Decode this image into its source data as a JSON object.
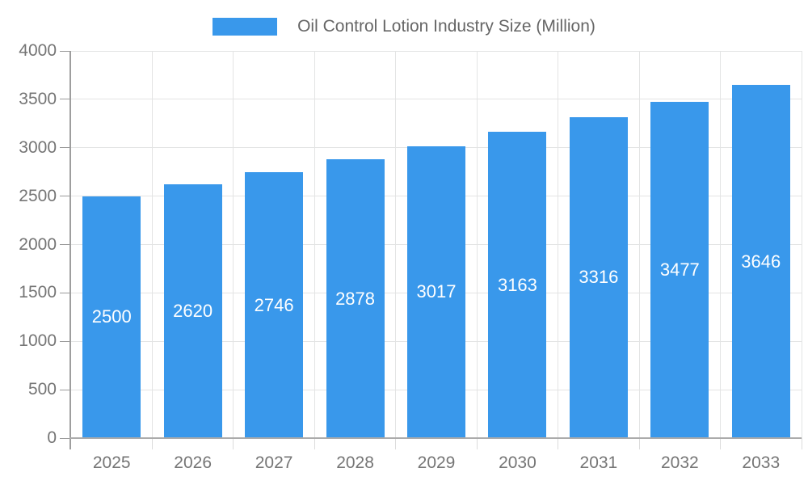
{
  "legend": {
    "label": "Oil Control Lotion Industry Size (Million)"
  },
  "colors": {
    "background": "#ffffff",
    "bar": "#3998EB",
    "grid": "#e3e4e4",
    "y_axis_line": "#9e9e9e",
    "x_axis_line": "#ababab",
    "y_tick": "#9a9a9a",
    "x_tick": "#dcdcdc",
    "axis_text": "#757575",
    "legend_text": "#666666",
    "bar_label_text": "#ffffff"
  },
  "chart_data": {
    "type": "bar",
    "title": "Oil Control Lotion Industry Size (Million)",
    "categories": [
      "2025",
      "2026",
      "2027",
      "2028",
      "2029",
      "2030",
      "2031",
      "2032",
      "2033"
    ],
    "values": [
      2500,
      2620,
      2746,
      2878,
      3017,
      3163,
      3316,
      3477,
      3646
    ],
    "xlabel": "",
    "ylabel": "",
    "ylim": [
      0,
      4000
    ],
    "ytick_step": 500,
    "grid": "on",
    "legend_position": "top",
    "bar_value_labels": "inside-center"
  }
}
